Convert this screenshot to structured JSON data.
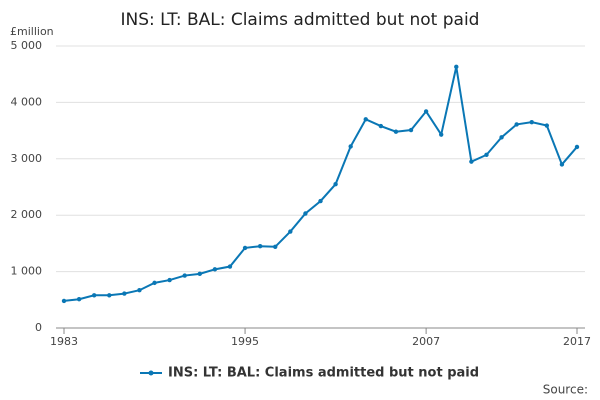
{
  "chart_data": {
    "type": "line",
    "title": "INS: LT: BAL: Claims admitted but not paid",
    "y_label": "£million",
    "source": "Source:",
    "x": [
      1983,
      1984,
      1985,
      1986,
      1987,
      1988,
      1989,
      1990,
      1991,
      1992,
      1993,
      1994,
      1995,
      1996,
      1997,
      1998,
      1999,
      2000,
      2001,
      2002,
      2003,
      2004,
      2005,
      2006,
      2007,
      2008,
      2009,
      2010,
      2011,
      2012,
      2013,
      2014,
      2015,
      2016,
      2017
    ],
    "series": [
      {
        "name": "INS: LT: BAL: Claims admitted but not paid",
        "color": "#0a77b5",
        "values": [
          480,
          510,
          580,
          580,
          610,
          670,
          800,
          850,
          930,
          960,
          1040,
          1090,
          1420,
          1450,
          1440,
          1710,
          2030,
          2250,
          2550,
          3220,
          3700,
          3580,
          3480,
          3510,
          3840,
          3430,
          4630,
          2950,
          3070,
          3380,
          3610,
          3650,
          3590,
          2900,
          3210
        ]
      }
    ],
    "xlim": [
      1983,
      2017
    ],
    "xticks": [
      1983,
      1995,
      2007,
      2017
    ],
    "ylim": [
      0,
      5000
    ],
    "yticks": [
      0,
      {
        "value": 1000,
        "label": "1 000"
      },
      {
        "value": 2000,
        "label": "2 000"
      },
      {
        "value": 3000,
        "label": "3 000"
      },
      {
        "value": 4000,
        "label": "4 000"
      },
      {
        "value": 5000,
        "label": "5 000"
      }
    ],
    "grid": true,
    "legend": "bottom"
  }
}
